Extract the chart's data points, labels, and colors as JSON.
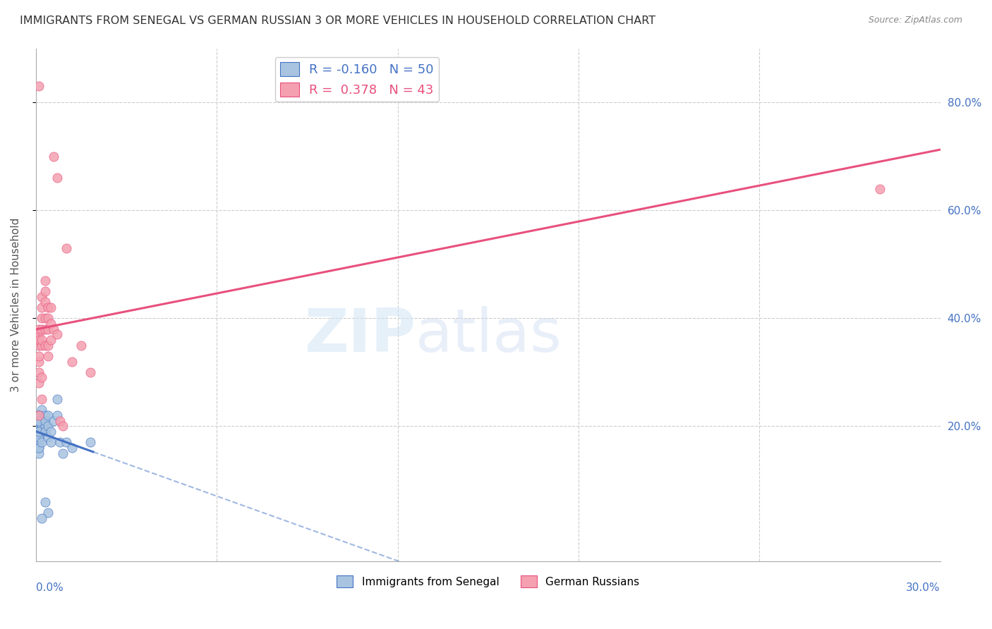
{
  "title": "IMMIGRANTS FROM SENEGAL VS GERMAN RUSSIAN 3 OR MORE VEHICLES IN HOUSEHOLD CORRELATION CHART",
  "source": "Source: ZipAtlas.com",
  "ylabel": "3 or more Vehicles in Household",
  "xmin": 0.0,
  "xmax": 0.3,
  "ymin": -0.05,
  "ymax": 0.9,
  "senegal_R": -0.16,
  "senegal_N": 50,
  "german_R": 0.378,
  "german_N": 43,
  "senegal_color": "#a8c4e0",
  "german_color": "#f4a0b0",
  "senegal_line_color": "#4472c4",
  "german_line_color": "#e8507d",
  "legend_label_senegal": "Immigrants from Senegal",
  "legend_label_german": "German Russians",
  "senegal_points_x": [
    0.001,
    0.001,
    0.002,
    0.001,
    0.001,
    0.002,
    0.001,
    0.002,
    0.001,
    0.001,
    0.002,
    0.001,
    0.001,
    0.002,
    0.001,
    0.001,
    0.002,
    0.001,
    0.001,
    0.002,
    0.001,
    0.002,
    0.001,
    0.001,
    0.002,
    0.001,
    0.002,
    0.001,
    0.002,
    0.001,
    0.003,
    0.003,
    0.003,
    0.003,
    0.004,
    0.004,
    0.004,
    0.005,
    0.005,
    0.006,
    0.007,
    0.007,
    0.008,
    0.009,
    0.01,
    0.012,
    0.018,
    0.003,
    0.004,
    0.002
  ],
  "senegal_points_y": [
    0.2,
    0.19,
    0.21,
    0.18,
    0.22,
    0.2,
    0.17,
    0.23,
    0.19,
    0.16,
    0.21,
    0.18,
    0.2,
    0.19,
    0.15,
    0.22,
    0.2,
    0.18,
    0.21,
    0.19,
    0.17,
    0.2,
    0.16,
    0.22,
    0.21,
    0.18,
    0.2,
    0.19,
    0.17,
    0.21,
    0.22,
    0.2,
    0.19,
    0.21,
    0.2,
    0.22,
    0.18,
    0.17,
    0.19,
    0.21,
    0.25,
    0.22,
    0.17,
    0.15,
    0.17,
    0.16,
    0.17,
    0.06,
    0.04,
    0.03
  ],
  "german_points_x": [
    0.001,
    0.001,
    0.001,
    0.001,
    0.001,
    0.001,
    0.001,
    0.001,
    0.001,
    0.001,
    0.002,
    0.002,
    0.002,
    0.002,
    0.002,
    0.002,
    0.002,
    0.002,
    0.003,
    0.003,
    0.003,
    0.003,
    0.003,
    0.003,
    0.004,
    0.004,
    0.004,
    0.004,
    0.004,
    0.005,
    0.005,
    0.005,
    0.006,
    0.006,
    0.007,
    0.007,
    0.008,
    0.009,
    0.01,
    0.012,
    0.015,
    0.018,
    0.28
  ],
  "german_points_y": [
    0.35,
    0.32,
    0.37,
    0.28,
    0.38,
    0.33,
    0.3,
    0.36,
    0.22,
    0.83,
    0.4,
    0.35,
    0.38,
    0.42,
    0.29,
    0.36,
    0.44,
    0.25,
    0.45,
    0.38,
    0.43,
    0.35,
    0.4,
    0.47,
    0.38,
    0.42,
    0.35,
    0.4,
    0.33,
    0.39,
    0.36,
    0.42,
    0.38,
    0.7,
    0.37,
    0.66,
    0.21,
    0.2,
    0.53,
    0.32,
    0.35,
    0.3,
    0.64
  ],
  "background_color": "#ffffff",
  "grid_color": "#cccccc",
  "watermark_zip": "ZIP",
  "watermark_atlas": "atlas"
}
